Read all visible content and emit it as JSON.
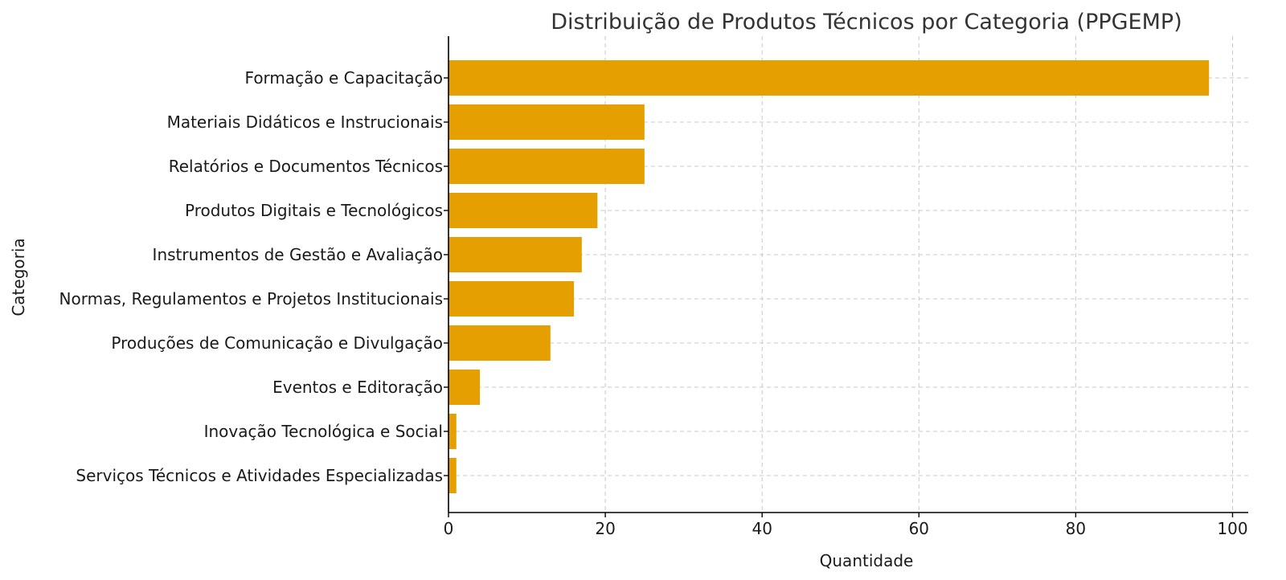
{
  "chart_data": {
    "type": "bar",
    "orientation": "horizontal",
    "title": "Distribuição de Produtos Técnicos por Categoria (PPGEMP)",
    "xlabel": "Quantidade",
    "ylabel": "Categoria",
    "categories": [
      "Formação e Capacitação",
      "Materiais Didáticos e Instrucionais",
      "Relatórios e Documentos Técnicos",
      "Produtos Digitais e Tecnológicos",
      "Instrumentos de Gestão e Avaliação",
      "Normas, Regulamentos e Projetos Institucionais",
      "Produções de Comunicação e Divulgação",
      "Eventos e Editoração",
      "Inovação Tecnológica e Social",
      "Serviços Técnicos e Atividades Especializadas"
    ],
    "values": [
      97,
      25,
      25,
      19,
      17,
      16,
      13,
      4,
      1,
      1
    ],
    "xlim": [
      0,
      102
    ],
    "xticks": [
      0,
      20,
      40,
      60,
      80,
      100
    ],
    "grid": true,
    "bar_color": "#e69f00"
  }
}
